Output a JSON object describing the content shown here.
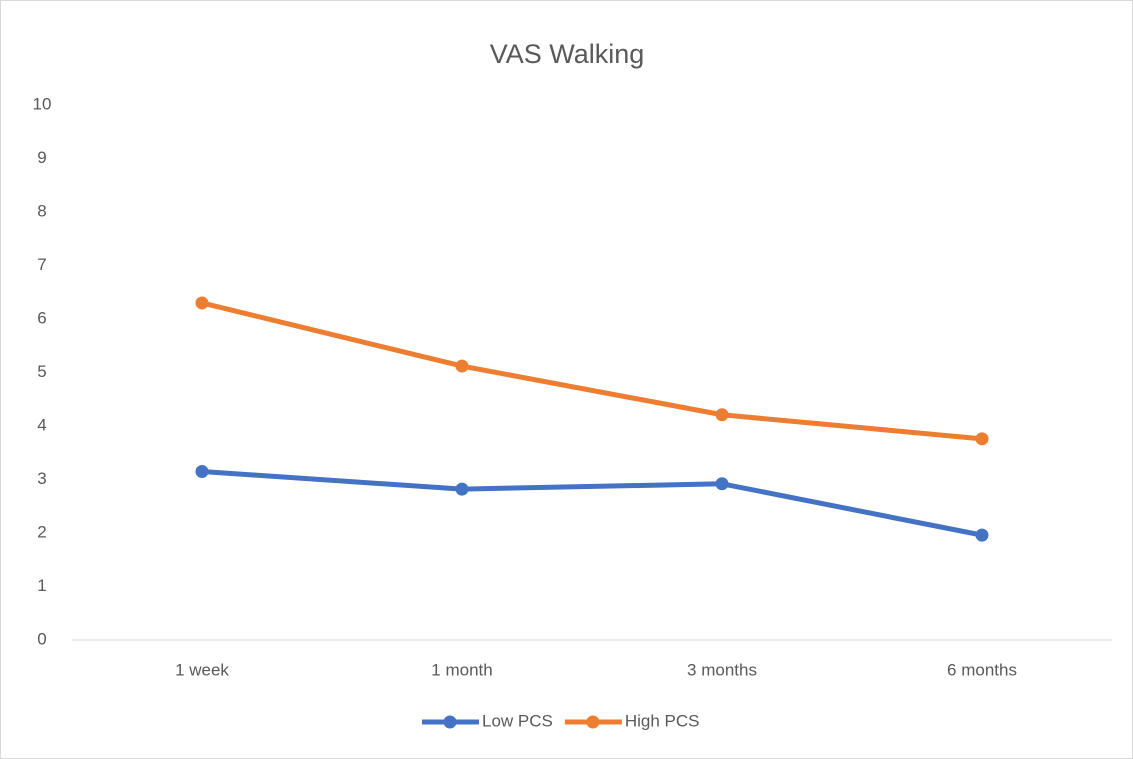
{
  "chart_data": {
    "type": "line",
    "title": "VAS Walking",
    "categories": [
      "1 week",
      "1 month",
      "3 months",
      "6 months"
    ],
    "series": [
      {
        "name": "Low PCS",
        "color": "#4472c4",
        "values": [
          3.15,
          2.82,
          2.92,
          1.96
        ]
      },
      {
        "name": "High PCS",
        "color": "#ed7d31",
        "values": [
          6.3,
          5.12,
          4.21,
          3.76
        ]
      }
    ],
    "ylim": [
      0,
      10
    ],
    "yticks": [
      0,
      1,
      2,
      3,
      4,
      5,
      6,
      7,
      8,
      9,
      10
    ],
    "grid": false,
    "legend": "bottom"
  }
}
